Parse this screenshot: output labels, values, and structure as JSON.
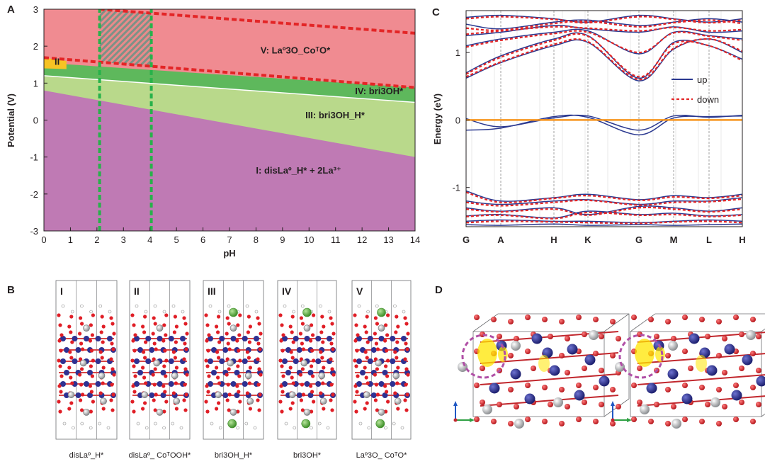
{
  "panels": {
    "a": "A",
    "b": "B",
    "c": "C",
    "d": "D"
  },
  "chart_data": [
    {
      "type": "area",
      "xlabel": "pH",
      "ylabel": "Potential (V)",
      "xlim": [
        0,
        14
      ],
      "ylim": [
        -3,
        3
      ],
      "xticks": [
        "0",
        "1",
        "2",
        "3",
        "4",
        "5",
        "6",
        "7",
        "8",
        "9",
        "10",
        "11",
        "12",
        "13",
        "14"
      ],
      "yticks": [
        "-3",
        "-2",
        "-1",
        "0",
        "1",
        "2",
        "3"
      ],
      "regions": [
        {
          "id": "I",
          "label": "I: disLaº_H* + 2La³⁺",
          "color": "#bf7ab4",
          "upper_boundary": [
            [
              0,
              0.8
            ],
            [
              14,
              -1.0
            ]
          ]
        },
        {
          "id": "II",
          "label": "II",
          "color": "#f7c324",
          "upper_boundary": [
            [
              0,
              1.69
            ],
            [
              0.85,
              1.6
            ]
          ]
        },
        {
          "id": "III",
          "label": "III: bri3OH_H*",
          "color": "#b9d98b",
          "upper_boundary": [
            [
              0,
              1.2
            ],
            [
              14,
              0.48
            ]
          ]
        },
        {
          "id": "IV",
          "label": "IV: bri3OH*",
          "color": "#5eb85c",
          "upper_boundary": [
            [
              0,
              1.55
            ],
            [
              14,
              0.88
            ]
          ]
        },
        {
          "id": "V",
          "label": "V: Laº3O_CoᵀO*",
          "color": "#f08b91",
          "upper_boundary": [
            [
              0,
              3.0
            ],
            [
              14,
              3.0
            ]
          ]
        }
      ],
      "dashed_lines": [
        {
          "color": "#e32526",
          "points": [
            [
              0,
              1.69
            ],
            [
              14,
              0.88
            ]
          ]
        },
        {
          "color": "#e32526",
          "points": [
            [
              2.1,
              3.0
            ],
            [
              14,
              2.35
            ]
          ]
        },
        {
          "color": "#27b24a",
          "points": [
            [
              2.1,
              -3
            ],
            [
              2.1,
              3
            ]
          ]
        },
        {
          "color": "#27b24a",
          "points": [
            [
              4.05,
              -3
            ],
            [
              4.05,
              3
            ]
          ]
        }
      ],
      "hatched_window": {
        "pH": [
          2.1,
          4.05
        ]
      }
    },
    {
      "type": "line",
      "ylabel": "Energy (eV)",
      "ylim": [
        -1.58,
        1.62
      ],
      "yticks": [
        "-1",
        "0",
        "1"
      ],
      "k_labels": [
        "G",
        "A",
        "H",
        "K",
        "G",
        "M",
        "L",
        "H"
      ],
      "fermi_level": 0,
      "series": [
        {
          "name": "up",
          "color": "#2b3990",
          "dash": "solid",
          "bands": [
            [
              -0.15,
              -0.12,
              0.05,
              0.04,
              -0.22,
              0.03,
              0.05,
              0.06
            ],
            [
              0.02,
              -0.1,
              0.03,
              0.06,
              -0.15,
              0.06,
              0.04,
              0.07
            ],
            [
              0.7,
              0.95,
              1.2,
              1.25,
              0.62,
              1.15,
              1.1,
              0.9
            ],
            [
              0.62,
              0.85,
              1.1,
              1.15,
              0.58,
              1.05,
              1.2,
              1.0
            ],
            [
              1.1,
              1.2,
              1.3,
              1.32,
              0.98,
              1.3,
              1.25,
              1.2
            ],
            [
              1.25,
              1.3,
              1.4,
              1.35,
              1.3,
              1.38,
              1.3,
              1.32
            ],
            [
              1.42,
              1.35,
              1.45,
              1.48,
              1.4,
              1.45,
              1.5,
              1.45
            ],
            [
              1.52,
              1.55,
              1.5,
              1.45,
              1.55,
              1.5,
              1.45,
              1.5
            ],
            [
              -1.05,
              -1.2,
              -1.15,
              -1.1,
              -1.18,
              -1.12,
              -1.15,
              -1.1
            ],
            [
              -1.2,
              -1.25,
              -1.2,
              -1.18,
              -1.25,
              -1.2,
              -1.2,
              -1.15
            ],
            [
              -1.3,
              -1.35,
              -1.3,
              -1.4,
              -1.28,
              -1.3,
              -1.35,
              -1.3
            ],
            [
              -1.42,
              -1.4,
              -1.45,
              -1.35,
              -1.4,
              -1.38,
              -1.42,
              -1.4
            ],
            [
              -1.5,
              -1.48,
              -1.5,
              -1.5,
              -1.52,
              -1.5,
              -1.48,
              -1.5
            ],
            [
              -1.55,
              -1.56,
              -1.54,
              -1.56,
              -1.55,
              -1.56,
              -1.55,
              -1.54
            ]
          ]
        },
        {
          "name": "down",
          "color": "#e32526",
          "dash": "dashed",
          "bands": [
            [
              0.68,
              0.93,
              1.18,
              1.24,
              0.64,
              1.13,
              1.1,
              0.88
            ],
            [
              0.64,
              0.86,
              1.12,
              1.16,
              0.6,
              1.06,
              1.2,
              1.02
            ],
            [
              1.08,
              1.18,
              1.28,
              1.3,
              1.0,
              1.29,
              1.24,
              1.18
            ],
            [
              1.27,
              1.32,
              1.38,
              1.36,
              1.32,
              1.37,
              1.32,
              1.34
            ],
            [
              1.36,
              1.33,
              1.43,
              1.46,
              1.38,
              1.44,
              1.48,
              1.43
            ],
            [
              1.5,
              1.53,
              1.49,
              1.44,
              1.53,
              1.49,
              1.44,
              1.48
            ],
            [
              -1.07,
              -1.22,
              -1.16,
              -1.12,
              -1.19,
              -1.14,
              -1.16,
              -1.12
            ],
            [
              -1.22,
              -1.27,
              -1.22,
              -1.19,
              -1.26,
              -1.22,
              -1.21,
              -1.17
            ],
            [
              -1.32,
              -1.36,
              -1.32,
              -1.41,
              -1.3,
              -1.32,
              -1.36,
              -1.32
            ],
            [
              -1.43,
              -1.41,
              -1.46,
              -1.37,
              -1.41,
              -1.4,
              -1.43,
              -1.41
            ],
            [
              -1.52,
              -1.5,
              -1.51,
              -1.52,
              -1.53,
              -1.51,
              -1.5,
              -1.52
            ]
          ]
        }
      ],
      "legend_position": "right"
    }
  ],
  "structures": {
    "numerals": [
      "I",
      "II",
      "III",
      "IV",
      "V"
    ],
    "captions": [
      "disLaº_H*",
      "disLaº_ CoᵀOOH*",
      "bri3OH_H*",
      "bri3OH*",
      "Laº3O_ CoᵀO*"
    ],
    "atom_colors": {
      "O": "#e01e26",
      "Co": "#2e3192",
      "La": "#bcbec0",
      "H": "#ffffff",
      "Sr": "#6fbf44"
    }
  }
}
